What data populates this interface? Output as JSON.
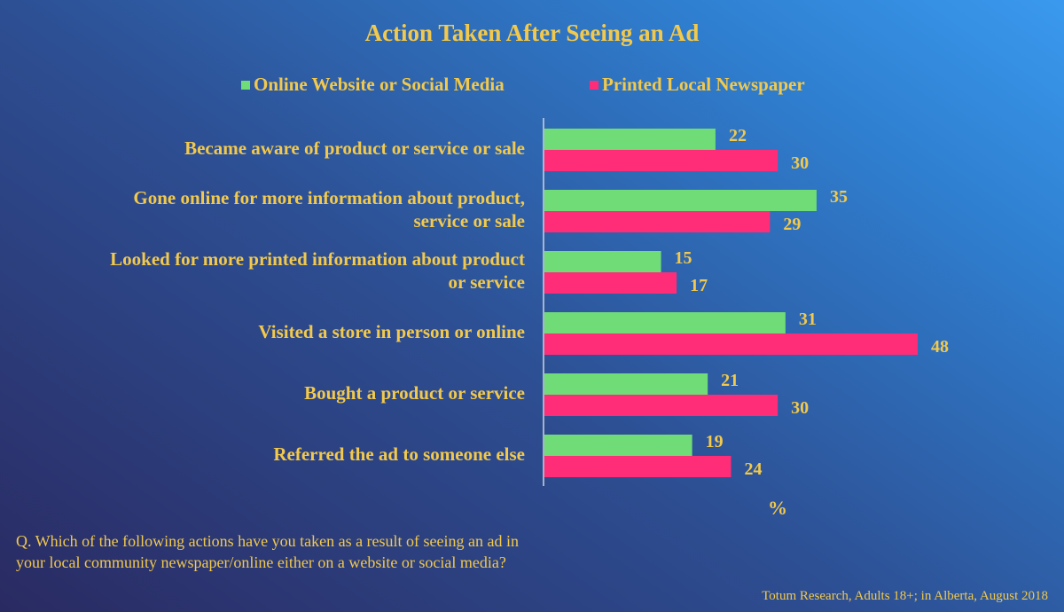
{
  "chart_data": {
    "type": "bar",
    "orientation": "horizontal",
    "title": "Action Taken After Seeing an Ad",
    "categories": [
      [
        "Became aware of product or service or sale"
      ],
      [
        "Gone online for more information about product,",
        "service or sale"
      ],
      [
        "Looked for more printed information about product",
        "or service"
      ],
      [
        "Visited a store in person or online"
      ],
      [
        "Bought a product or service"
      ],
      [
        "Referred the ad to someone else"
      ]
    ],
    "series": [
      {
        "name": "Online Website or Social Media",
        "color": "#6fdc78",
        "values": [
          22,
          35,
          15,
          31,
          21,
          19
        ]
      },
      {
        "name": "Printed Local Newspaper",
        "color": "#ff2d78",
        "values": [
          30,
          29,
          17,
          48,
          30,
          24
        ]
      }
    ],
    "xlim": [
      0,
      50
    ],
    "xlabel": "%",
    "legend_position": "top",
    "grid": false
  },
  "question": [
    "Q. Which of the following actions have you taken as a result of seeing an ad in",
    "your local community newspaper/online either on a website or social media?"
  ],
  "source": "Totum Research, Adults 18+;  in Alberta, August 2018"
}
